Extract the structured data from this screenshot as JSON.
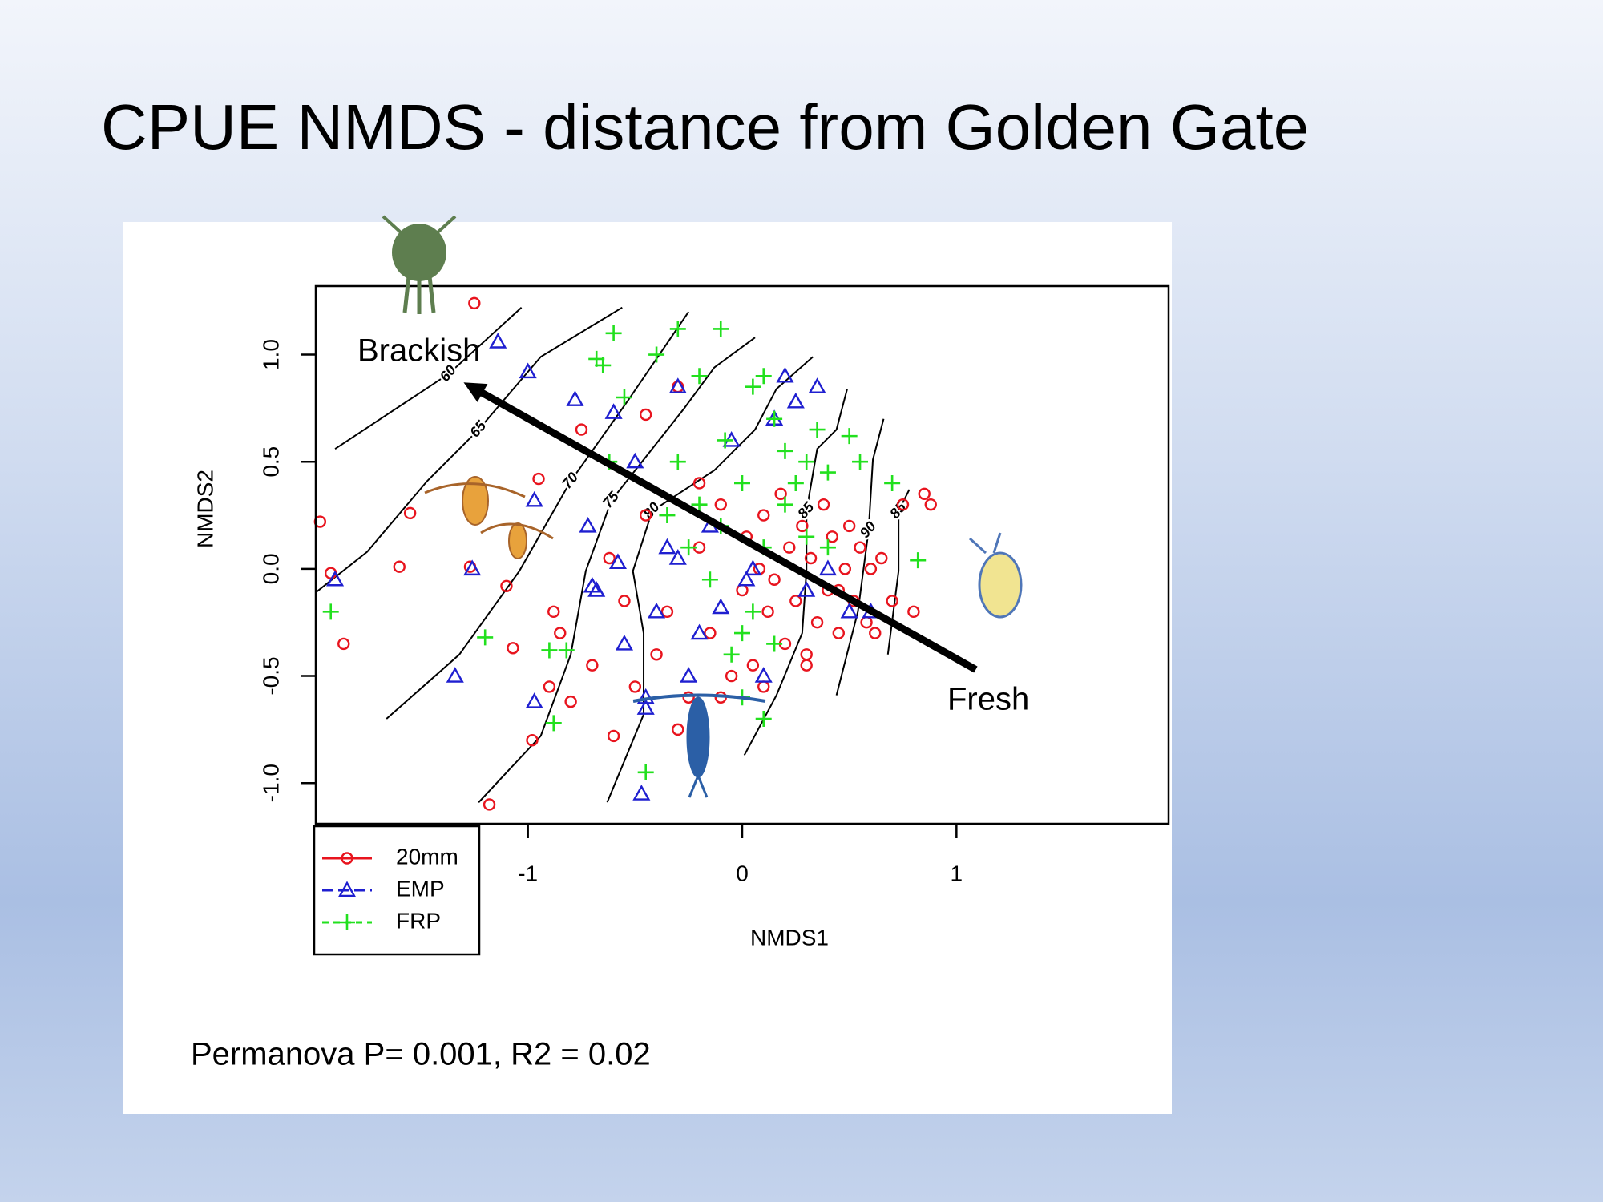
{
  "slide_title": "CPUE NMDS - distance from Golden Gate",
  "note": "Permanova P= 0.001, R2 = 0.02",
  "chart_data": {
    "type": "scatter",
    "x_label": "NMDS1",
    "y_label": "NMDS2",
    "xlim": [
      -1.99,
      1.99
    ],
    "ylim": [
      -1.19,
      1.32
    ],
    "xticks": [
      -1,
      0,
      1
    ],
    "yticks": [
      {
        "value": -1,
        "label": "-1.0"
      },
      {
        "value": -0.5,
        "label": "-0.5"
      },
      {
        "value": 0,
        "label": "0.0"
      },
      {
        "value": 0.5,
        "label": "0.5"
      },
      {
        "value": 1,
        "label": "1.0"
      }
    ],
    "legend_position": "bottom-left",
    "series": [
      {
        "name": "20mm",
        "color": "#e8141e",
        "marker": "circle",
        "x": [
          -1.97,
          -1.92,
          -1.86,
          -1.6,
          -1.55,
          -1.27,
          -1.25,
          -1.1,
          -1.07,
          -0.95,
          -0.9,
          -0.98,
          -1.18,
          -0.88,
          -0.85,
          -0.8,
          -0.75,
          -0.7,
          -0.62,
          -0.6,
          -0.55,
          -0.5,
          -0.45,
          -0.4,
          -0.35,
          -0.3,
          -0.25,
          -0.2,
          -0.15,
          -0.1,
          -0.05,
          0.0,
          0.02,
          0.05,
          0.08,
          0.1,
          0.12,
          0.15,
          0.18,
          0.2,
          0.22,
          0.25,
          0.28,
          0.3,
          0.32,
          0.35,
          0.38,
          0.4,
          0.42,
          0.45,
          0.48,
          0.5,
          0.52,
          0.55,
          0.58,
          0.6,
          0.62,
          0.65,
          0.7,
          0.75,
          0.8,
          0.85,
          0.88,
          -0.45,
          -0.3,
          -0.1,
          0.1,
          0.3,
          0.45,
          -0.2
        ],
        "y": [
          0.22,
          -0.02,
          -0.35,
          0.01,
          0.26,
          0.01,
          1.24,
          -0.08,
          -0.37,
          0.42,
          -0.55,
          -0.8,
          -1.1,
          -0.2,
          -0.3,
          -0.62,
          0.65,
          -0.45,
          0.05,
          -0.78,
          -0.15,
          -0.55,
          0.72,
          -0.4,
          -0.2,
          0.85,
          -0.6,
          0.1,
          -0.3,
          0.3,
          -0.5,
          -0.1,
          0.15,
          -0.45,
          0.0,
          0.25,
          -0.2,
          -0.05,
          0.35,
          -0.35,
          0.1,
          -0.15,
          0.2,
          -0.4,
          0.05,
          -0.25,
          0.3,
          -0.1,
          0.15,
          -0.3,
          0.0,
          0.2,
          -0.15,
          0.1,
          -0.25,
          0.0,
          -0.3,
          0.05,
          -0.15,
          0.3,
          -0.2,
          0.35,
          0.3,
          0.25,
          -0.75,
          -0.6,
          -0.55,
          -0.45,
          -0.1,
          0.4
        ]
      },
      {
        "name": "EMP",
        "color": "#1f1fd0",
        "marker": "triangle",
        "x": [
          -1.9,
          -1.14,
          -1.0,
          -0.97,
          -1.34,
          -1.26,
          -0.97,
          -0.78,
          -0.72,
          -0.6,
          -0.58,
          -0.68,
          -0.7,
          -0.55,
          -0.5,
          -0.45,
          -0.4,
          -0.35,
          -0.3,
          -0.25,
          -0.2,
          -0.15,
          -0.1,
          -0.05,
          0.05,
          0.1,
          0.15,
          0.2,
          0.25,
          0.3,
          0.35,
          0.4,
          0.5,
          0.6,
          -0.47,
          -0.45,
          0.02,
          -0.3
        ],
        "y": [
          -0.05,
          1.06,
          0.92,
          0.32,
          -0.5,
          0.0,
          -0.62,
          0.79,
          0.2,
          0.73,
          0.03,
          -0.1,
          -0.08,
          -0.35,
          0.5,
          -0.6,
          -0.2,
          0.1,
          0.85,
          -0.5,
          -0.3,
          0.2,
          -0.18,
          0.6,
          0.0,
          -0.5,
          0.7,
          0.9,
          0.78,
          -0.1,
          0.85,
          0.0,
          -0.2,
          -0.2,
          -1.05,
          -0.65,
          -0.05,
          0.05
        ]
      },
      {
        "name": "FRP",
        "color": "#22e01e",
        "marker": "plus",
        "x": [
          -1.92,
          -1.2,
          -0.9,
          -0.6,
          -0.65,
          -0.55,
          -0.4,
          -0.3,
          -0.2,
          -0.1,
          -0.08,
          0.05,
          0.1,
          0.15,
          0.2,
          0.25,
          0.3,
          0.35,
          0.4,
          0.5,
          0.55,
          0.7,
          0.82,
          -0.3,
          -0.2,
          -0.1,
          0.0,
          0.1,
          0.2,
          0.3,
          0.4,
          0.05,
          0.15,
          -0.05,
          0.0,
          0.1,
          -0.35,
          -0.25,
          -0.15,
          0.0,
          -0.45,
          -0.88,
          -0.82,
          -0.68,
          -0.62
        ],
        "y": [
          -0.2,
          -0.32,
          -0.38,
          1.1,
          0.95,
          0.8,
          1.0,
          1.12,
          0.9,
          1.12,
          0.6,
          0.85,
          0.9,
          0.7,
          0.55,
          0.4,
          0.5,
          0.65,
          0.45,
          0.62,
          0.5,
          0.4,
          0.04,
          0.5,
          0.3,
          0.2,
          0.4,
          0.1,
          0.3,
          0.15,
          0.1,
          -0.2,
          -0.35,
          -0.4,
          -0.6,
          -0.7,
          0.25,
          0.1,
          -0.05,
          -0.3,
          -0.95,
          -0.72,
          -0.38,
          0.98,
          0.5
        ]
      }
    ],
    "contours": [
      {
        "level": 60,
        "x": [
          -1.9,
          -1.37,
          -1.03
        ],
        "y": [
          0.56,
          0.91,
          1.22
        ]
      },
      {
        "level": 65,
        "x": [
          -1.99,
          -1.75,
          -1.47,
          -1.23,
          -0.94,
          -0.56
        ],
        "y": [
          -0.11,
          0.08,
          0.41,
          0.65,
          0.99,
          1.22
        ]
      },
      {
        "level": 70,
        "x": [
          -1.66,
          -1.32,
          -1.04,
          -0.8,
          -0.53,
          -0.25
        ],
        "y": [
          -0.7,
          -0.4,
          -0.01,
          0.41,
          0.79,
          1.2
        ]
      },
      {
        "level": 75,
        "x": [
          -1.23,
          -0.94,
          -0.8,
          -0.73,
          -0.61,
          -0.42,
          -0.27,
          -0.13,
          0.06
        ],
        "y": [
          -1.09,
          -0.78,
          -0.4,
          -0.01,
          0.32,
          0.56,
          0.75,
          0.94,
          1.08
        ]
      },
      {
        "level": 80,
        "x": [
          -0.63,
          -0.46,
          -0.46,
          -0.51,
          -0.42,
          -0.13,
          0.06,
          0.16,
          0.33
        ],
        "y": [
          -1.09,
          -0.68,
          -0.3,
          -0.01,
          0.27,
          0.46,
          0.65,
          0.84,
          0.99
        ]
      },
      {
        "level": 85,
        "x": [
          0.01,
          0.16,
          0.28,
          0.3,
          0.3,
          0.35,
          0.44,
          0.49
        ],
        "y": [
          -0.87,
          -0.59,
          -0.3,
          -0.01,
          0.27,
          0.56,
          0.65,
          0.84
        ]
      },
      {
        "level": 90,
        "x": [
          0.44,
          0.54,
          0.59,
          0.61,
          0.66
        ],
        "y": [
          -0.59,
          -0.2,
          0.18,
          0.51,
          0.7
        ]
      },
      {
        "level": 85,
        "x": [
          0.68,
          0.73,
          0.73,
          0.78
        ],
        "y": [
          -0.4,
          -0.01,
          0.27,
          0.37
        ]
      }
    ],
    "arrow": {
      "x": [
        1.09,
        -1.3
      ],
      "y": [
        -0.47,
        0.87
      ]
    },
    "annotations": [
      "Brackish",
      "Fresh"
    ]
  }
}
